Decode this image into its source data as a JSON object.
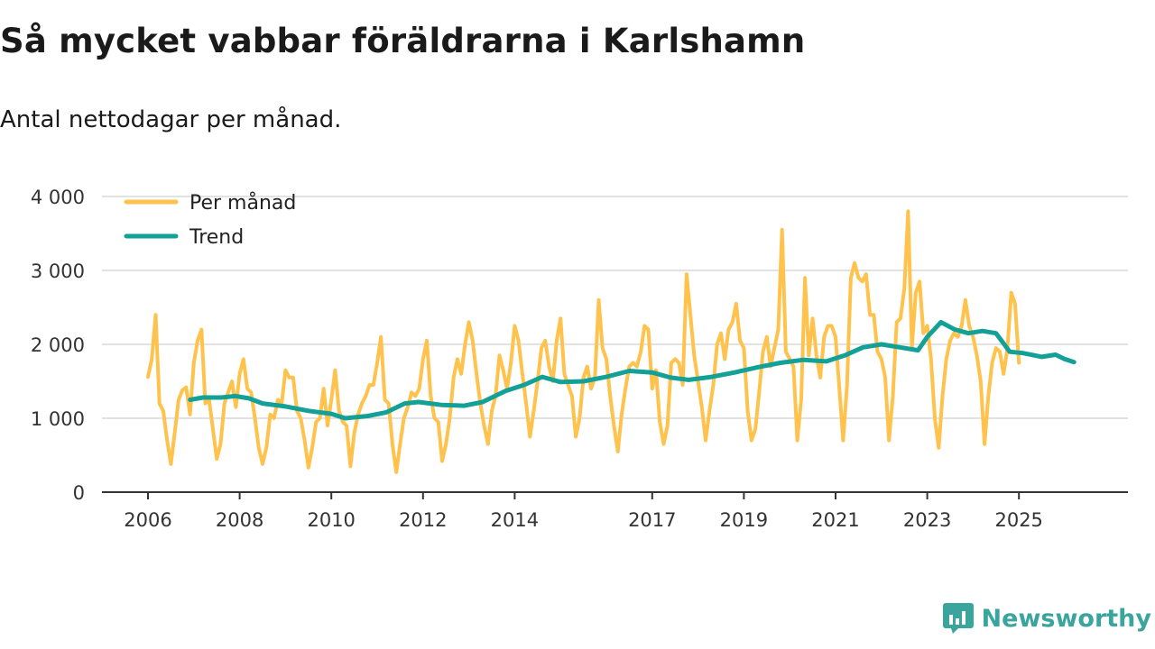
{
  "page": {
    "title": "Så mycket vabbar föräldrarna i Karlshamn",
    "subtitle": "Antal nettodagar per månad.",
    "brand": "Newsworthy"
  },
  "colors": {
    "monthly": "#ffc34d",
    "trend": "#13a096",
    "grid": "#d9d9d9",
    "axis": "#333333",
    "brand": "#3aa59d"
  },
  "chart_data": {
    "type": "line",
    "title": "Så mycket vabbar föräldrarna i Karlshamn",
    "subtitle": "Antal nettodagar per månad.",
    "xlabel": "",
    "ylabel": "",
    "ylim": [
      0,
      4000
    ],
    "xlim": [
      2006,
      2026.3
    ],
    "grid": true,
    "legend": "top-left",
    "y_ticks": [
      {
        "value": 0,
        "label": "0"
      },
      {
        "value": 1000,
        "label": "1 000"
      },
      {
        "value": 2000,
        "label": "2 000"
      },
      {
        "value": 3000,
        "label": "3 000"
      },
      {
        "value": 4000,
        "label": "4 000"
      }
    ],
    "x_ticks": [
      {
        "value": 2006,
        "label": "2006"
      },
      {
        "value": 2008,
        "label": "2008"
      },
      {
        "value": 2010,
        "label": "2010"
      },
      {
        "value": 2012,
        "label": "2012"
      },
      {
        "value": 2014,
        "label": "2014"
      },
      {
        "value": 2017,
        "label": "2017"
      },
      {
        "value": 2019,
        "label": "2019"
      },
      {
        "value": 2021,
        "label": "2021"
      },
      {
        "value": 2023,
        "label": "2023"
      },
      {
        "value": 2025,
        "label": "2025"
      }
    ],
    "series": [
      {
        "name": "Per månad",
        "start": 2006.0,
        "step": 0.08333,
        "values": [
          1560,
          1800,
          2400,
          1200,
          1100,
          700,
          380,
          800,
          1250,
          1380,
          1420,
          1050,
          1750,
          2050,
          2200,
          1200,
          1250,
          850,
          450,
          650,
          1200,
          1350,
          1500,
          1150,
          1600,
          1800,
          1400,
          1350,
          1000,
          600,
          380,
          600,
          1050,
          1000,
          1250,
          1200,
          1650,
          1550,
          1550,
          1100,
          1000,
          700,
          330,
          600,
          950,
          1000,
          1400,
          900,
          1250,
          1650,
          1100,
          950,
          900,
          350,
          800,
          1050,
          1200,
          1300,
          1450,
          1450,
          1750,
          2100,
          1250,
          1200,
          650,
          270,
          650,
          1000,
          1150,
          1350,
          1300,
          1400,
          1800,
          2050,
          1300,
          1000,
          950,
          420,
          650,
          1000,
          1550,
          1800,
          1600,
          2000,
          2300,
          2050,
          1600,
          1200,
          900,
          650,
          1100,
          1300,
          1850,
          1650,
          1400,
          1750,
          2250,
          2050,
          1600,
          1200,
          750,
          1100,
          1500,
          1950,
          2050,
          1700,
          1500,
          2050,
          2350,
          1600,
          1450,
          1300,
          750,
          1000,
          1550,
          1700,
          1400,
          1550,
          2600,
          1950,
          1800,
          1300,
          900,
          550,
          1050,
          1400,
          1700,
          1750,
          1700,
          1900,
          2250,
          2200,
          1400,
          1650,
          950,
          650,
          900,
          1750,
          1800,
          1750,
          1450,
          2950,
          2400,
          1850,
          1500,
          1150,
          700,
          1100,
          1450,
          2000,
          2150,
          1800,
          2200,
          2300,
          2550,
          2050,
          1950,
          1100,
          700,
          850,
          1350,
          1900,
          2100,
          1700,
          1950,
          2200,
          3550,
          1900,
          1800,
          1700,
          700,
          1250,
          2900,
          1850,
          2350,
          1850,
          1550,
          2100,
          2250,
          2250,
          2100,
          1400,
          700,
          1450,
          2900,
          3100,
          2900,
          2850,
          2950,
          2400,
          2400,
          1900,
          1800,
          1550,
          700,
          1300,
          2300,
          2350,
          2750,
          3800,
          1950,
          2700,
          2850,
          2150,
          2250,
          1800,
          1000,
          600,
          1300,
          1800,
          2050,
          2150,
          2100,
          2250,
          2600,
          2250,
          2100,
          1850,
          1500,
          650,
          1300,
          1750,
          1950,
          1900,
          1600,
          1950,
          2700,
          2550,
          1750
        ]
      },
      {
        "name": "Trend",
        "points": [
          [
            2006.92,
            1250
          ],
          [
            2007.2,
            1280
          ],
          [
            2007.6,
            1280
          ],
          [
            2007.9,
            1300
          ],
          [
            2008.2,
            1270
          ],
          [
            2008.5,
            1200
          ],
          [
            2009.0,
            1160
          ],
          [
            2009.5,
            1100
          ],
          [
            2010.0,
            1060
          ],
          [
            2010.3,
            1000
          ],
          [
            2010.8,
            1030
          ],
          [
            2011.2,
            1080
          ],
          [
            2011.6,
            1200
          ],
          [
            2011.9,
            1220
          ],
          [
            2012.4,
            1180
          ],
          [
            2012.9,
            1170
          ],
          [
            2013.3,
            1220
          ],
          [
            2013.8,
            1370
          ],
          [
            2014.2,
            1450
          ],
          [
            2014.6,
            1560
          ],
          [
            2015.0,
            1490
          ],
          [
            2015.5,
            1500
          ],
          [
            2016.0,
            1560
          ],
          [
            2016.5,
            1640
          ],
          [
            2017.0,
            1620
          ],
          [
            2017.4,
            1550
          ],
          [
            2017.8,
            1520
          ],
          [
            2018.3,
            1560
          ],
          [
            2018.8,
            1620
          ],
          [
            2019.3,
            1690
          ],
          [
            2019.8,
            1750
          ],
          [
            2020.3,
            1790
          ],
          [
            2020.8,
            1770
          ],
          [
            2021.2,
            1850
          ],
          [
            2021.6,
            1960
          ],
          [
            2022.0,
            2000
          ],
          [
            2022.4,
            1960
          ],
          [
            2022.8,
            1920
          ],
          [
            2023.0,
            2100
          ],
          [
            2023.3,
            2300
          ],
          [
            2023.6,
            2200
          ],
          [
            2023.9,
            2150
          ],
          [
            2024.2,
            2180
          ],
          [
            2024.5,
            2150
          ],
          [
            2024.8,
            1900
          ],
          [
            2025.1,
            1880
          ],
          [
            2025.5,
            1830
          ],
          [
            2025.8,
            1860
          ],
          [
            2026.0,
            1800
          ],
          [
            2026.2,
            1760
          ]
        ]
      }
    ]
  }
}
